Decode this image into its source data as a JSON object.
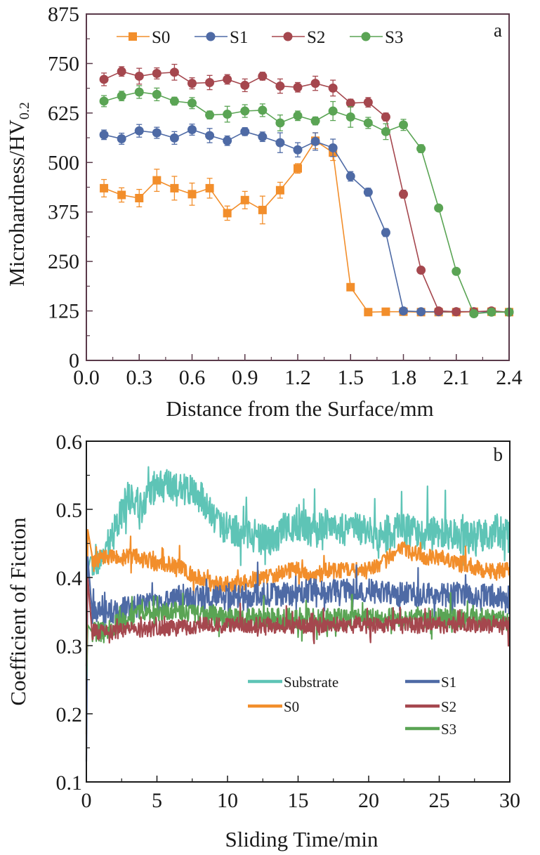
{
  "chart_data": [
    {
      "id": "a",
      "type": "line",
      "panel_label": "a",
      "title": "",
      "xlabel": "Distance from the Surface/mm",
      "ylabel_main": "Microhardness/HV",
      "ylabel_sub": "0.2",
      "xlim": [
        0.0,
        2.4
      ],
      "ylim": [
        0,
        875
      ],
      "xticks": [
        "0.0",
        "0.3",
        "0.6",
        "0.9",
        "1.2",
        "1.5",
        "1.8",
        "2.1",
        "2.4"
      ],
      "xtick_values": [
        0.0,
        0.3,
        0.6,
        0.9,
        1.2,
        1.5,
        1.8,
        2.1,
        2.4
      ],
      "yticks": [
        "0",
        "125",
        "250",
        "375",
        "500",
        "625",
        "750",
        "875"
      ],
      "ytick_values": [
        0,
        125,
        250,
        375,
        500,
        625,
        750,
        875
      ],
      "grid": false,
      "legend_position": "top",
      "error_bars": true,
      "series": [
        {
          "name": "S0",
          "color": "#f28e2b",
          "marker": "square",
          "x": [
            0.1,
            0.2,
            0.3,
            0.4,
            0.5,
            0.6,
            0.7,
            0.8,
            0.9,
            1.0,
            1.1,
            1.2,
            1.3,
            1.4,
            1.5,
            1.6,
            1.7,
            1.8,
            1.9,
            2.0,
            2.1,
            2.2,
            2.3,
            2.4
          ],
          "y": [
            435,
            418,
            410,
            455,
            435,
            420,
            435,
            372,
            405,
            380,
            430,
            485,
            555,
            525,
            185,
            122,
            123,
            123,
            122,
            122,
            122,
            123,
            123,
            122
          ],
          "err": [
            22,
            18,
            22,
            28,
            30,
            28,
            25,
            18,
            22,
            35,
            20,
            12,
            20,
            20,
            6,
            4,
            4,
            4,
            4,
            4,
            4,
            4,
            4,
            4
          ]
        },
        {
          "name": "S1",
          "color": "#4e6aa5",
          "marker": "circle",
          "x": [
            0.1,
            0.2,
            0.3,
            0.4,
            0.5,
            0.6,
            0.7,
            0.8,
            0.9,
            1.0,
            1.1,
            1.2,
            1.3,
            1.4,
            1.5,
            1.6,
            1.7,
            1.8,
            1.9,
            2.0,
            2.1,
            2.2,
            2.3,
            2.4
          ],
          "y": [
            570,
            560,
            580,
            575,
            562,
            583,
            568,
            555,
            578,
            565,
            550,
            532,
            553,
            537,
            465,
            425,
            323,
            125,
            123,
            123,
            123,
            123,
            123,
            122
          ],
          "err": [
            12,
            14,
            16,
            14,
            16,
            14,
            18,
            12,
            10,
            12,
            25,
            18,
            22,
            22,
            12,
            10,
            10,
            4,
            4,
            4,
            4,
            4,
            4,
            4
          ]
        },
        {
          "name": "S2",
          "color": "#a5474e",
          "marker": "circle",
          "x": [
            0.1,
            0.2,
            0.3,
            0.4,
            0.5,
            0.6,
            0.7,
            0.8,
            0.9,
            1.0,
            1.1,
            1.2,
            1.3,
            1.4,
            1.5,
            1.6,
            1.7,
            1.8,
            1.9,
            2.0,
            2.1,
            2.2,
            2.3,
            2.4
          ],
          "y": [
            710,
            730,
            718,
            725,
            728,
            700,
            702,
            710,
            695,
            718,
            693,
            690,
            700,
            688,
            650,
            652,
            615,
            420,
            228,
            125,
            123,
            123,
            125,
            122
          ],
          "err": [
            16,
            12,
            20,
            14,
            20,
            14,
            18,
            12,
            16,
            10,
            18,
            12,
            18,
            20,
            10,
            12,
            10,
            10,
            6,
            4,
            4,
            4,
            4,
            4
          ]
        },
        {
          "name": "S3",
          "color": "#5aa454",
          "marker": "circle",
          "x": [
            0.1,
            0.2,
            0.3,
            0.4,
            0.5,
            0.6,
            0.7,
            0.8,
            0.9,
            1.0,
            1.1,
            1.2,
            1.3,
            1.4,
            1.5,
            1.6,
            1.7,
            1.8,
            1.9,
            2.0,
            2.1,
            2.2,
            2.3,
            2.4
          ],
          "y": [
            655,
            668,
            678,
            672,
            655,
            650,
            620,
            622,
            630,
            632,
            600,
            618,
            605,
            630,
            615,
            600,
            578,
            595,
            535,
            385,
            225,
            118,
            122,
            122
          ],
          "err": [
            14,
            12,
            16,
            16,
            10,
            14,
            10,
            20,
            16,
            16,
            20,
            12,
            10,
            24,
            26,
            14,
            20,
            14,
            10,
            6,
            6,
            4,
            4,
            4
          ]
        }
      ]
    },
    {
      "id": "b",
      "type": "line",
      "panel_label": "b",
      "title": "",
      "xlabel": "Sliding Time/min",
      "ylabel": "Coefficient of Fiction",
      "xlim": [
        0,
        30
      ],
      "ylim": [
        0.1,
        0.6
      ],
      "xticks": [
        "0",
        "5",
        "10",
        "15",
        "20",
        "25",
        "30"
      ],
      "xtick_values": [
        0,
        5,
        10,
        15,
        20,
        25,
        30
      ],
      "yticks": [
        "0.1",
        "0.2",
        "0.3",
        "0.4",
        "0.5",
        "0.6"
      ],
      "ytick_values": [
        0.1,
        0.2,
        0.3,
        0.4,
        0.5,
        0.6
      ],
      "grid": false,
      "legend_position": "lower-right",
      "series": [
        {
          "name": "Substrate",
          "color": "#5ec4b6",
          "noise": 0.025,
          "x": [
            0,
            0.3,
            1,
            2,
            3,
            4,
            5,
            6,
            7,
            8,
            9,
            10,
            11,
            12,
            13,
            14,
            15,
            16,
            17,
            18,
            19,
            20,
            21,
            22,
            23,
            24,
            25,
            26,
            27,
            28,
            29,
            30
          ],
          "y": [
            0.4,
            0.43,
            0.42,
            0.47,
            0.52,
            0.5,
            0.54,
            0.53,
            0.53,
            0.52,
            0.49,
            0.47,
            0.47,
            0.46,
            0.45,
            0.47,
            0.48,
            0.47,
            0.48,
            0.47,
            0.47,
            0.47,
            0.46,
            0.47,
            0.47,
            0.46,
            0.47,
            0.46,
            0.46,
            0.46,
            0.47,
            0.46
          ]
        },
        {
          "name": "S0",
          "color": "#f28e2b",
          "noise": 0.012,
          "x": [
            0,
            0.1,
            0.5,
            1,
            2,
            3,
            4,
            5,
            6,
            7,
            8,
            9,
            10,
            11,
            12,
            13,
            14,
            15,
            16,
            17,
            18,
            19,
            20,
            21,
            22,
            23,
            24,
            25,
            26,
            27,
            28,
            29,
            30
          ],
          "y": [
            0.17,
            0.47,
            0.42,
            0.43,
            0.43,
            0.43,
            0.43,
            0.42,
            0.42,
            0.41,
            0.4,
            0.39,
            0.39,
            0.39,
            0.4,
            0.4,
            0.41,
            0.41,
            0.4,
            0.41,
            0.41,
            0.41,
            0.41,
            0.42,
            0.44,
            0.44,
            0.43,
            0.43,
            0.42,
            0.42,
            0.41,
            0.41,
            0.41
          ]
        },
        {
          "name": "S1",
          "color": "#4e6aa5",
          "noise": 0.018,
          "x": [
            0,
            0.1,
            0.4,
            2,
            4,
            6,
            8,
            10,
            12,
            14,
            16,
            18,
            20,
            22,
            24,
            26,
            28,
            30
          ],
          "y": [
            0.13,
            0.43,
            0.35,
            0.35,
            0.36,
            0.365,
            0.37,
            0.37,
            0.375,
            0.375,
            0.38,
            0.38,
            0.38,
            0.375,
            0.375,
            0.375,
            0.375,
            0.37
          ]
        },
        {
          "name": "S2",
          "color": "#a5474e",
          "noise": 0.012,
          "x": [
            0,
            0.1,
            0.4,
            2,
            4,
            6,
            8,
            10,
            12,
            14,
            16,
            18,
            20,
            22,
            24,
            26,
            28,
            30
          ],
          "y": [
            0.27,
            0.4,
            0.32,
            0.32,
            0.325,
            0.325,
            0.33,
            0.33,
            0.33,
            0.33,
            0.33,
            0.33,
            0.33,
            0.33,
            0.33,
            0.33,
            0.33,
            0.33
          ]
        },
        {
          "name": "S3",
          "color": "#5aa454",
          "noise": 0.015,
          "x": [
            0,
            0.1,
            0.4,
            1,
            2,
            3,
            4,
            5,
            6,
            8,
            10,
            12,
            14,
            16,
            18,
            20,
            22,
            24,
            26,
            28,
            30
          ],
          "y": [
            0.25,
            0.33,
            0.32,
            0.32,
            0.33,
            0.34,
            0.35,
            0.35,
            0.35,
            0.345,
            0.34,
            0.34,
            0.34,
            0.34,
            0.34,
            0.34,
            0.34,
            0.34,
            0.34,
            0.34,
            0.335
          ]
        }
      ]
    }
  ]
}
